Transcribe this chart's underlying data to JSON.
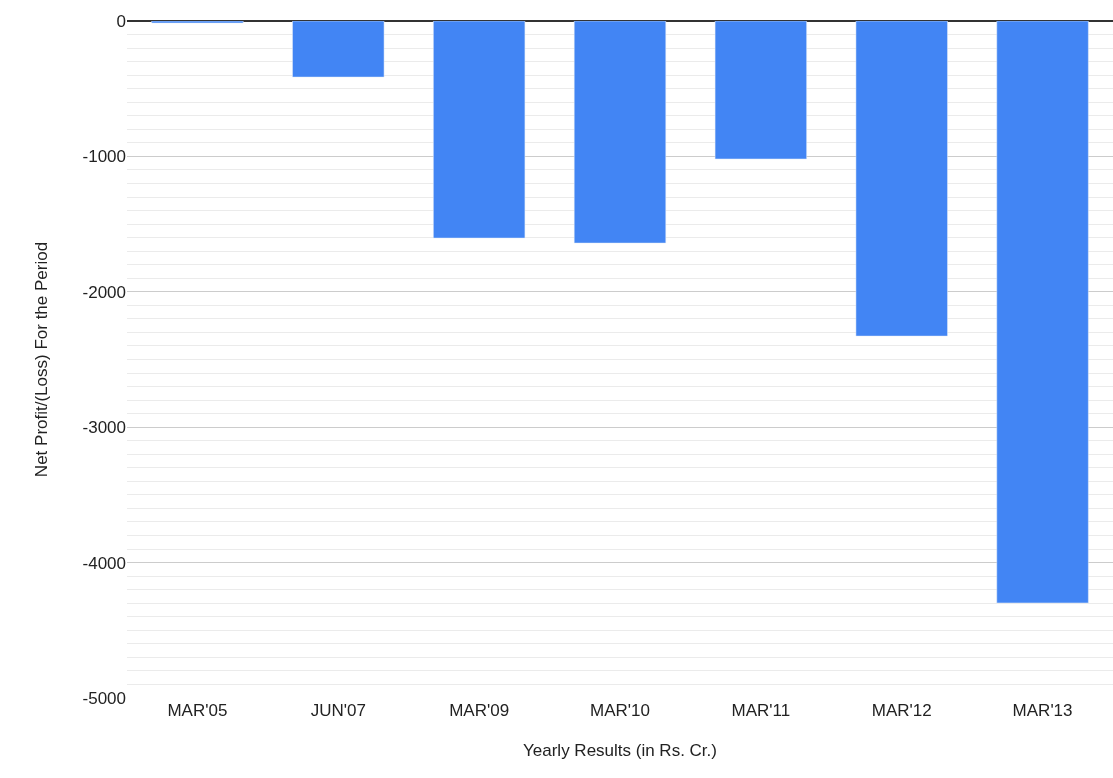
{
  "chart_data": {
    "type": "bar",
    "xlabel": "Yearly Results (in Rs. Cr.)",
    "ylabel": "Net Profit/(Loss) For the Period",
    "categories": [
      "MAR'05",
      "JUN'07",
      "MAR'09",
      "MAR'10",
      "MAR'11",
      "MAR'12",
      "MAR'13"
    ],
    "series": [
      {
        "color": "#4285f4",
        "values": [
          -15,
          -414,
          -1603,
          -1640,
          -1019,
          -2327,
          -4298
        ]
      }
    ],
    "ylim": [
      -5000,
      0
    ],
    "yticks": [
      -5000,
      {
        "value": -4900,
        "label": null
      },
      {
        "value": -4800,
        "label": null
      },
      {
        "value": -4700,
        "label": null
      },
      {
        "value": -4600,
        "label": null
      },
      {
        "value": -4500,
        "label": null
      },
      {
        "value": -4400,
        "label": null
      },
      {
        "value": -4300,
        "label": null
      },
      {
        "value": -4200,
        "label": null
      },
      {
        "value": -4100,
        "label": null
      },
      -4000,
      {
        "value": -3900,
        "label": null
      },
      {
        "value": -3800,
        "label": null
      },
      {
        "value": -3700,
        "label": null
      },
      {
        "value": -3600,
        "label": null
      },
      {
        "value": -3500,
        "label": null
      },
      {
        "value": -3400,
        "label": null
      },
      {
        "value": -3300,
        "label": null
      },
      {
        "value": -3200,
        "label": null
      },
      {
        "value": -3100,
        "label": null
      },
      -3000,
      {
        "value": -2900,
        "label": null
      },
      {
        "value": -2800,
        "label": null
      },
      {
        "value": -2700,
        "label": null
      },
      {
        "value": -2600,
        "label": null
      },
      {
        "value": -2500,
        "label": null
      },
      {
        "value": -2400,
        "label": null
      },
      {
        "value": -2300,
        "label": null
      },
      {
        "value": -2200,
        "label": null
      },
      {
        "value": -2100,
        "label": null
      },
      -2000,
      {
        "value": -1900,
        "label": null
      },
      {
        "value": -1800,
        "label": null
      },
      {
        "value": -1700,
        "label": null
      },
      {
        "value": -1600,
        "label": null
      },
      {
        "value": -1500,
        "label": null
      },
      {
        "value": -1400,
        "label": null
      },
      {
        "value": -1300,
        "label": null
      },
      {
        "value": -1200,
        "label": null
      },
      {
        "value": -1100,
        "label": null
      },
      -1000,
      {
        "value": -900,
        "label": null
      },
      {
        "value": -800,
        "label": null
      },
      {
        "value": -700,
        "label": null
      },
      {
        "value": -600,
        "label": null
      },
      {
        "value": -500,
        "label": null
      },
      {
        "value": -400,
        "label": null
      },
      {
        "value": -300,
        "label": null
      },
      {
        "value": -200,
        "label": null
      },
      {
        "value": -100,
        "label": null
      },
      0
    ],
    "grid": "y"
  }
}
